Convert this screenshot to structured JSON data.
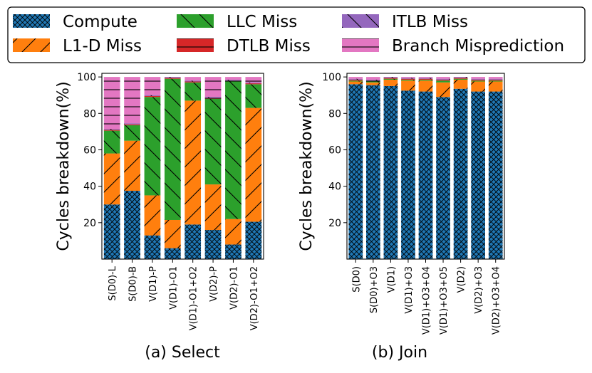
{
  "legend": {
    "position": "top",
    "entries": [
      {
        "name": "Compute",
        "color": "#1f77b4",
        "hatch": "xx"
      },
      {
        "name": "L1-D Miss",
        "color": "#ff7f0e",
        "hatch": "/"
      },
      {
        "name": "LLC Miss",
        "color": "#2ca02c",
        "hatch": "\\"
      },
      {
        "name": "DTLB Miss",
        "color": "#d62728",
        "hatch": "-"
      },
      {
        "name": "ITLB Miss",
        "color": "#9467bd",
        "hatch": "\\"
      },
      {
        "name": "Branch Misprediction",
        "color": "#e377c2",
        "hatch": "-"
      }
    ]
  },
  "chart_data": [
    {
      "type": "bar",
      "stacked": true,
      "title": "(a) Select",
      "xlabel": "",
      "ylabel": "Cycles breakdown(%)",
      "ylim": [
        0,
        102
      ],
      "yticks": [
        20,
        40,
        60,
        80,
        100
      ],
      "categories": [
        "S(D0)-L",
        "S(D0)-B",
        "V(D1)-P",
        "V(D1)-O1",
        "V(D1)-O1+O2",
        "V(D2)-P",
        "V(D2)-O1",
        "V(D2)-O1+O2"
      ],
      "series": [
        {
          "name": "Compute",
          "values": [
            30,
            37.5,
            13,
            6,
            19,
            16,
            8,
            20.5
          ]
        },
        {
          "name": "L1-D Miss",
          "values": [
            28,
            27.5,
            22,
            15.5,
            68,
            25,
            14,
            62.5
          ]
        },
        {
          "name": "LLC Miss",
          "values": [
            12.5,
            8.5,
            54,
            77.5,
            10,
            47,
            75.5,
            13
          ]
        },
        {
          "name": "DTLB Miss",
          "values": [
            0.5,
            0.5,
            0.5,
            0.5,
            0.5,
            0.5,
            0.5,
            0.5
          ]
        },
        {
          "name": "ITLB Miss",
          "values": [
            0.5,
            0.5,
            0.5,
            0.5,
            0.5,
            0.5,
            0.5,
            0.5
          ]
        },
        {
          "name": "Branch Misprediction",
          "values": [
            28.5,
            25.5,
            10,
            0,
            2,
            11,
            1.5,
            3
          ]
        }
      ]
    },
    {
      "type": "bar",
      "stacked": true,
      "title": "(b) Join",
      "xlabel": "",
      "ylabel": "Cycles breakdown(%)",
      "ylim": [
        0,
        102
      ],
      "yticks": [
        20,
        40,
        60,
        80,
        100
      ],
      "categories": [
        "S(D0)",
        "S(D0)+O3",
        "V(D1)",
        "V(D1)+O3",
        "V(D1)+O3+O4",
        "V(D1)+O3+O5",
        "V(D2)",
        "V(D2)+O3",
        "V(D2)+O3+O4"
      ],
      "series": [
        {
          "name": "Compute",
          "values": [
            96,
            95.5,
            95,
            92.5,
            92,
            89,
            93.5,
            92,
            92
          ]
        },
        {
          "name": "L1-D Miss",
          "values": [
            1.5,
            1.5,
            3.5,
            5.5,
            6,
            8,
            5,
            5.5,
            5.5
          ]
        },
        {
          "name": "LLC Miss",
          "values": [
            0.5,
            0.5,
            0.5,
            0.5,
            0.5,
            1,
            0.5,
            0.5,
            0.5
          ]
        },
        {
          "name": "DTLB Miss",
          "values": [
            0.5,
            0.5,
            0.5,
            0.5,
            0.5,
            0.5,
            0.5,
            0.5,
            0.5
          ]
        },
        {
          "name": "ITLB Miss",
          "values": [
            0.5,
            0.5,
            0.5,
            0.5,
            0.5,
            0.5,
            0.5,
            0.5,
            0.5
          ]
        },
        {
          "name": "Branch Misprediction",
          "values": [
            1,
            1.5,
            0,
            0.5,
            0.5,
            1,
            0,
            1,
            1
          ]
        }
      ]
    }
  ]
}
